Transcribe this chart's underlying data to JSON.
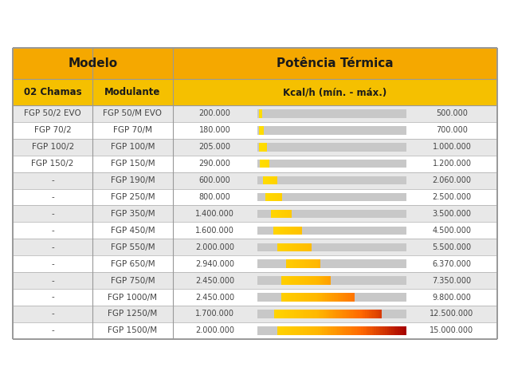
{
  "title_modelo": "Modelo",
  "title_potencia": "Potência Térmica",
  "subtitle_chamas": "02 Chamas",
  "subtitle_modulante": "Modulante",
  "subtitle_kcal": "Kcal/h (mín. - máx.)",
  "header_bg": "#F5A800",
  "subheader_bg": "#F5C000",
  "row_bg_odd": "#E8E8E8",
  "row_bg_even": "#FFFFFF",
  "border_color": "#999999",
  "fig_bg": "#FFFFFF",
  "text_color_dark": "#222222",
  "text_color_row": "#444444",
  "rows": [
    {
      "chamas": "FGP 50/2 EVO",
      "modulante": "FGP 50/M EVO",
      "min": 200000,
      "max": 500000,
      "min_text": "200.000",
      "max_text": "500.000"
    },
    {
      "chamas": "FGP 70/2",
      "modulante": "FGP 70/M",
      "min": 180000,
      "max": 700000,
      "min_text": "180.000",
      "max_text": "700.000"
    },
    {
      "chamas": "FGP 100/2",
      "modulante": "FGP 100/M",
      "min": 205000,
      "max": 1000000,
      "min_text": "205.000",
      "max_text": "1.000.000"
    },
    {
      "chamas": "FGP 150/2",
      "modulante": "FGP 150/M",
      "min": 290000,
      "max": 1200000,
      "min_text": "290.000",
      "max_text": "1.200.000"
    },
    {
      "chamas": "-",
      "modulante": "FGP 190/M",
      "min": 600000,
      "max": 2060000,
      "min_text": "600.000",
      "max_text": "2.060.000"
    },
    {
      "chamas": "-",
      "modulante": "FGP 250/M",
      "min": 800000,
      "max": 2500000,
      "min_text": "800.000",
      "max_text": "2.500.000"
    },
    {
      "chamas": "-",
      "modulante": "FGP 350/M",
      "min": 1400000,
      "max": 3500000,
      "min_text": "1.400.000",
      "max_text": "3.500.000"
    },
    {
      "chamas": "-",
      "modulante": "FGP 450/M",
      "min": 1600000,
      "max": 4500000,
      "min_text": "1.600.000",
      "max_text": "4.500.000"
    },
    {
      "chamas": "-",
      "modulante": "FGP 550/M",
      "min": 2000000,
      "max": 5500000,
      "min_text": "2.000.000",
      "max_text": "5.500.000"
    },
    {
      "chamas": "-",
      "modulante": "FGP 650/M",
      "min": 2940000,
      "max": 6370000,
      "min_text": "2.940.000",
      "max_text": "6.370.000"
    },
    {
      "chamas": "-",
      "modulante": "FGP 750/M",
      "min": 2450000,
      "max": 7350000,
      "min_text": "2.450.000",
      "max_text": "7.350.000"
    },
    {
      "chamas": "-",
      "modulante": "FGP 1000/M",
      "min": 2450000,
      "max": 9800000,
      "min_text": "2.450.000",
      "max_text": "9.800.000"
    },
    {
      "chamas": "-",
      "modulante": "FGP 1250/M",
      "min": 1700000,
      "max": 12500000,
      "min_text": "1.700.000",
      "max_text": "12.500.000"
    },
    {
      "chamas": "-",
      "modulante": "FGP 1500/M",
      "min": 2000000,
      "max": 15000000,
      "min_text": "2.000.000",
      "max_text": "15.000.000"
    }
  ],
  "bar_max_val": 15000000,
  "font_size_title": 10,
  "font_size_sub": 8.5,
  "font_size_row": 7.5
}
